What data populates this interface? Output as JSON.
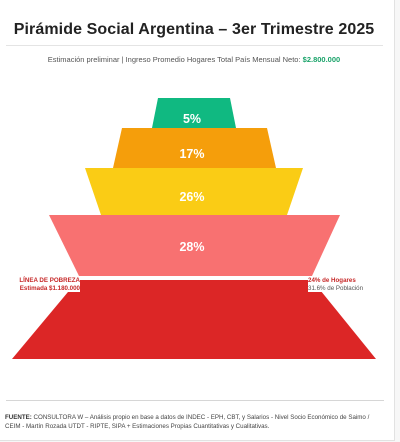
{
  "title": "Pirámide Social Argentina – 3er Trimestre 2025",
  "subtitle": {
    "text": "Estimación preliminar | Ingreso Promedio Hogares Total País Mensual Neto:",
    "value": "$2.800.000"
  },
  "pyramid": {
    "levels": [
      {
        "label": "5%",
        "color": "#10b981"
      },
      {
        "label": "17%",
        "color": "#f59e0b"
      },
      {
        "label": "26%",
        "color": "#facc15"
      },
      {
        "label": "28%",
        "color": "#f87171"
      },
      {
        "label": "",
        "color": "#dc2626"
      }
    ]
  },
  "poverty_line": {
    "title": "LÍNEA DE POBREZA",
    "estimate": "Estimada $1.180.000",
    "households": "24% de Hogares",
    "population_value": "31.6%",
    "population_text": "de Población"
  },
  "source": {
    "label": "FUENTE:",
    "text": "CONSULTORA W – Análisis propio en base a datos de INDEC - EPH, CBT, y Salarios - Nivel Socio Económico de Saimo / CEIM - Martín Rozada UTDT - RIPTE, SIPA + Estimaciones Propias Cuantitativas y Cualitativas."
  }
}
